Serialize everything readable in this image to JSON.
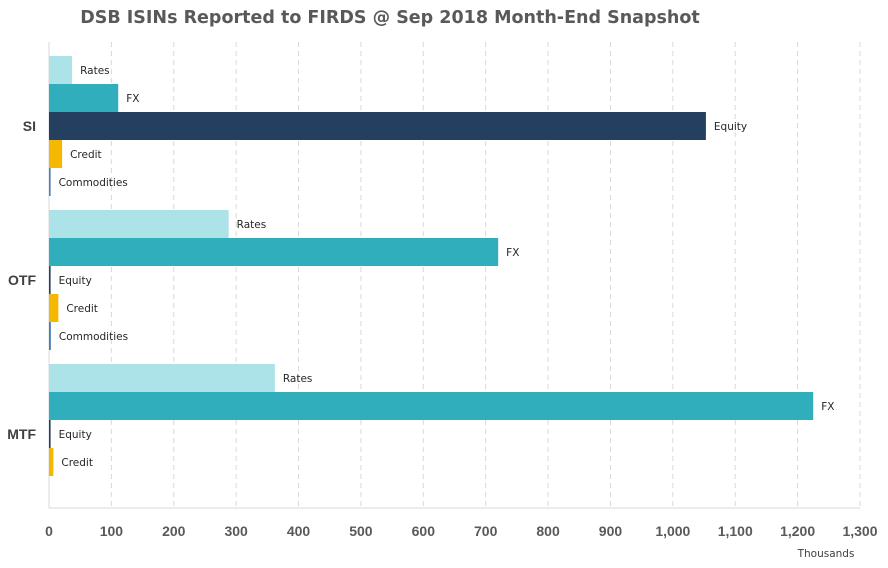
{
  "chart_data": {
    "type": "bar",
    "orientation": "horizontal",
    "title": "DSB ISINs Reported to FIRDS @ Sep 2018 Month-End Snapshot",
    "x_unit_label": "Thousands",
    "xlim": [
      0,
      1300
    ],
    "x_ticks": [
      "0",
      "100",
      "200",
      "300",
      "400",
      "500",
      "600",
      "700",
      "800",
      "900",
      "1,000",
      "1,100",
      "1,200",
      "1,300"
    ],
    "grid": "vertical-dashed",
    "colors": {
      "Rates": "#abe3e8",
      "FX": "#31aebb",
      "Equity": "#243f60",
      "Credit": "#f5b800",
      "Commodities": "#4a7ebb"
    },
    "groups": [
      {
        "name": "SI",
        "bars": [
          {
            "label": "Rates",
            "value": 37
          },
          {
            "label": "FX",
            "value": 111
          },
          {
            "label": "Equity",
            "value": 1053
          },
          {
            "label": "Credit",
            "value": 21
          },
          {
            "label": "Commodities",
            "value": 2
          }
        ]
      },
      {
        "name": "OTF",
        "bars": [
          {
            "label": "Rates",
            "value": 288
          },
          {
            "label": "FX",
            "value": 720
          },
          {
            "label": "Equity",
            "value": 1
          },
          {
            "label": "Credit",
            "value": 15
          },
          {
            "label": "Commodities",
            "value": 3
          }
        ]
      },
      {
        "name": "MTF",
        "bars": [
          {
            "label": "Rates",
            "value": 362
          },
          {
            "label": "FX",
            "value": 1225
          },
          {
            "label": "Equity",
            "value": 1
          },
          {
            "label": "Credit",
            "value": 7
          }
        ]
      }
    ]
  }
}
